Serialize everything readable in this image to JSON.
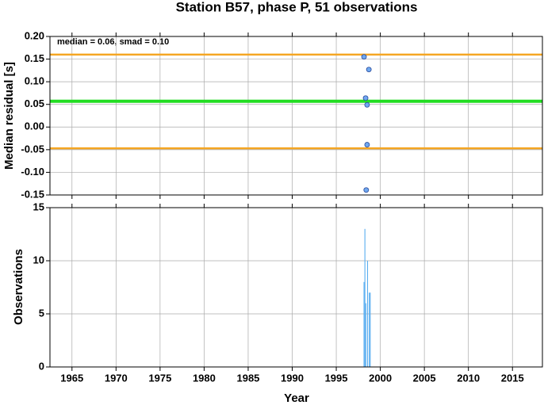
{
  "chart_data": [
    {
      "type": "scatter",
      "title": "Station B57, phase P, 51 observations",
      "ylabel": "Median residual [s]",
      "annotation": "median = 0.06, smad = 0.10",
      "x": [
        1998.15,
        1998.7,
        1998.33,
        1998.5,
        1998.5,
        1998.4
      ],
      "values": [
        0.155,
        0.127,
        0.064,
        0.049,
        -0.039,
        -0.139
      ],
      "color": "#6fa8f0",
      "hlines": [
        {
          "value": 0.16,
          "color": "#f5a623"
        },
        {
          "value": 0.057,
          "color": "#22dd22"
        },
        {
          "value": -0.047,
          "color": "#f5a623"
        }
      ],
      "xlim": [
        1962.5,
        2018.4
      ],
      "xticks": [
        1965,
        1970,
        1975,
        1980,
        1985,
        1990,
        1995,
        2000,
        2005,
        2010,
        2015
      ],
      "ylim": [
        -0.15,
        0.2
      ],
      "yticks": [
        {
          "value": 0.2,
          "label": "0.20"
        },
        0.15,
        {
          "value": 0.1,
          "label": "0.10"
        },
        0.05,
        {
          "value": 0,
          "label": "0.00"
        },
        -0.05,
        {
          "value": -0.1,
          "label": "-0.10"
        },
        -0.15
      ],
      "grid": true
    },
    {
      "type": "histogram",
      "xlabel": "Year",
      "ylabel": "Observations",
      "bins": [
        1998.1,
        1998.2,
        1998.3,
        1998.4,
        1998.5,
        1998.6,
        1998.7,
        1998.8,
        1998.9
      ],
      "values": [
        8,
        13,
        6,
        0,
        10,
        0,
        7,
        7
      ],
      "color": "#5aaef0",
      "xlim": [
        1962.5,
        2018.4
      ],
      "xticks": [
        1965,
        1970,
        1975,
        1980,
        1985,
        1990,
        1995,
        2000,
        2005,
        2010,
        2015
      ],
      "ylim": [
        0,
        15
      ],
      "yticks": [
        0,
        5,
        10,
        15
      ],
      "grid": true
    }
  ]
}
